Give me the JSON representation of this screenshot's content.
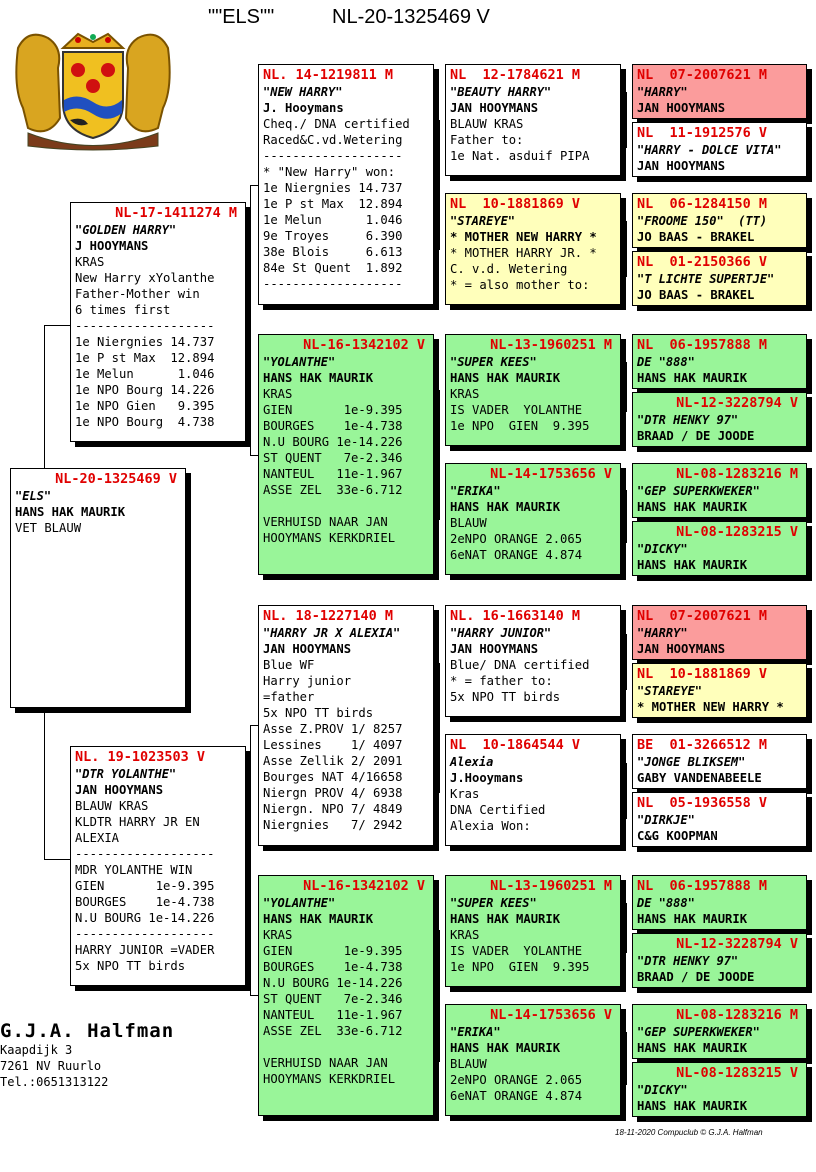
{
  "header": {
    "name": "\"\"ELS\"\"",
    "ring": "NL-20-1325469 V"
  },
  "breeder": {
    "name": "G.J.A. Halfman",
    "address1": "Kaapdijk 3",
    "address2": "7261 NV  Ruurlo",
    "phone": "Tel.:0651313122"
  },
  "footer": "18-11-2020   Compuclub © G.J.A. Halfman",
  "pigeons": {
    "p0": {
      "ring": "NL-20-1325469 V",
      "name": "\"ELS\"",
      "owner": "HANS HAK MAURIK",
      "lines": [
        "VET BLAUW"
      ]
    },
    "p1": {
      "ring": "NL-17-1411274 M",
      "name": "\"GOLDEN HARRY\"",
      "owner": "J HOOYMANS",
      "lines": [
        "KRAS",
        "New Harry xYolanthe",
        "Father-Mother win",
        "6 times first",
        "-------------------",
        "1e Niergnies 14.737",
        "1e P st Max  12.894",
        "1e Melun      1.046",
        "1e NPO Bourg 14.226",
        "1e NPO Gien   9.395",
        "1e NPO Bourg  4.738"
      ]
    },
    "p2": {
      "ring": "NL. 19-1023503 V",
      "name": "\"DTR YOLANTHE\"",
      "owner": "JAN HOOYMANS",
      "lines": [
        "BLAUW KRAS",
        "KLDTR HARRY JR EN",
        "ALEXIA",
        "-------------------",
        "MDR YOLANTHE WIN",
        "GIEN       1e-9.395",
        "BOURGES    1e-4.738",
        "N.U BOURG 1e-14.226",
        "-------------------",
        "HARRY JUNIOR =VADER",
        "5x NPO TT birds"
      ]
    },
    "p3": {
      "ring": "NL. 14-1219811 M",
      "name": "\"NEW HARRY\"",
      "owner": "J. Hooymans",
      "lines": [
        "Cheq./ DNA certified",
        "Raced&C.vd.Wetering",
        "-------------------",
        "* \"New Harry\" won:",
        "1e Niergnies 14.737",
        "1e P st Max  12.894",
        "1e Melun      1.046",
        "9e Troyes     6.390",
        "38e Blois     6.613",
        "84e St Quent  1.892",
        "-------------------"
      ]
    },
    "p4": {
      "ring": "NL-16-1342102 V",
      "name": "\"YOLANTHE\"",
      "owner": "HANS HAK MAURIK",
      "lines": [
        "KRAS",
        "GIEN       1e-9.395",
        "BOURGES    1e-4.738",
        "N.U BOURG 1e-14.226",
        "ST QUENT   7e-2.346",
        "NANTEUL   11e-1.967",
        "ASSE ZEL  33e-6.712",
        "",
        "VERHUISD NAAR JAN",
        "HOOYMANS KERKDRIEL"
      ]
    },
    "p5": {
      "ring": "NL. 18-1227140 M",
      "name": "\"HARRY JR X ALEXIA\"",
      "owner": "JAN HOOYMANS",
      "lines": [
        "Blue WF",
        "Harry junior",
        "=father",
        "5x NPO TT birds",
        "Asse Z.PROV 1/ 8257",
        "Lessines    1/ 4097",
        "Asse Zellik 2/ 2091",
        "Bourges NAT 4/16658",
        "Niergn PROV 4/ 6938",
        "Niergn. NPO 7/ 4849",
        "Niergnies   7/ 2942"
      ]
    },
    "p6": {
      "ring": "NL-16-1342102 V",
      "name": "\"YOLANTHE\"",
      "owner": "HANS HAK MAURIK",
      "lines": [
        "KRAS",
        "GIEN       1e-9.395",
        "BOURGES    1e-4.738",
        "N.U BOURG 1e-14.226",
        "ST QUENT   7e-2.346",
        "NANTEUL   11e-1.967",
        "ASSE ZEL  33e-6.712",
        "",
        "VERHUISD NAAR JAN",
        "HOOYMANS KERKDRIEL"
      ]
    },
    "p7": {
      "ring": "NL  12-1784621 M",
      "name": "\"BEAUTY HARRY\"",
      "owner": "JAN HOOYMANS",
      "lines": [
        "BLAUW KRAS",
        "Father to:",
        "1e Nat. asduif PIPA"
      ]
    },
    "p8": {
      "ring": "NL  10-1881869 V",
      "name": "\"STAREYE\"",
      "owner": "* MOTHER NEW HARRY *",
      "lines": [
        "* MOTHER HARRY JR. *",
        "C. v.d. Wetering",
        "* = also mother to:"
      ]
    },
    "p9": {
      "ring": "NL-13-1960251 M",
      "name": "\"SUPER KEES\"",
      "owner": "HANS HAK MAURIK",
      "lines": [
        "KRAS",
        "IS VADER  YOLANTHE",
        "1e NPO  GIEN  9.395"
      ]
    },
    "p10": {
      "ring": "NL-14-1753656 V",
      "name": "\"ERIKA\"",
      "owner": "HANS HAK MAURIK",
      "lines": [
        "BLAUW",
        "2eNPO ORANGE 2.065",
        "6eNAT ORANGE 4.874"
      ]
    },
    "p11": {
      "ring": "NL. 16-1663140 M",
      "name": "\"HARRY JUNIOR\"",
      "owner": "JAN HOOYMANS",
      "lines": [
        "Blue/ DNA certified",
        "* = father to:",
        "5x NPO TT birds"
      ]
    },
    "p12": {
      "ring": "NL  10-1864544 V",
      "name": "Alexia",
      "owner": "J.Hooymans",
      "lines": [
        "Kras",
        "DNA Certified",
        "Alexia Won:"
      ]
    },
    "p13": {
      "ring": "NL-13-1960251 M",
      "name": "\"SUPER KEES\"",
      "owner": "HANS HAK MAURIK",
      "lines": [
        "KRAS",
        "IS VADER  YOLANTHE",
        "1e NPO  GIEN  9.395"
      ]
    },
    "p14": {
      "ring": "NL-14-1753656 V",
      "name": "\"ERIKA\"",
      "owner": "HANS HAK MAURIK",
      "lines": [
        "BLAUW",
        "2eNPO ORANGE 2.065",
        "6eNAT ORANGE 4.874"
      ]
    },
    "p15": {
      "ring": "NL  07-2007621 M",
      "name": "\"HARRY\"",
      "owner": "JAN HOOYMANS",
      "lines": []
    },
    "p16": {
      "ring": "NL  11-1912576 V",
      "name": "\"HARRY - DOLCE VITA\"",
      "owner": "JAN HOOYMANS",
      "lines": []
    },
    "p17": {
      "ring": "NL  06-1284150 M",
      "name": "\"FROOME 150\"  (TT)",
      "owner": "JO BAAS - BRAKEL",
      "lines": []
    },
    "p18": {
      "ring": "NL  01-2150366 V",
      "name": "\"T LICHTE SUPERTJE\"",
      "owner": "JO BAAS - BRAKEL",
      "lines": []
    },
    "p19": {
      "ring": "NL  06-1957888 M",
      "name": "DE \"888\"",
      "owner": "HANS HAK MAURIK",
      "lines": []
    },
    "p20": {
      "ring": "NL-12-3228794 V",
      "name": "\"DTR HENKY 97\"",
      "owner": "BRAAD / DE JOODE",
      "lines": []
    },
    "p21": {
      "ring": "NL-08-1283216 M",
      "name": "\"GEP SUPERKWEKER\"",
      "owner": "HANS HAK MAURIK",
      "lines": []
    },
    "p22": {
      "ring": "NL-08-1283215 V",
      "name": "\"DICKY\"",
      "owner": "HANS HAK MAURIK",
      "lines": []
    },
    "p23": {
      "ring": "NL  07-2007621 M",
      "name": "\"HARRY\"",
      "owner": "JAN HOOYMANS",
      "lines": []
    },
    "p24": {
      "ring": "NL  10-1881869 V",
      "name": "\"STAREYE\"",
      "owner": "* MOTHER NEW HARRY *",
      "lines": []
    },
    "p25": {
      "ring": "BE  01-3266512 M",
      "name": "\"JONGE BLIKSEM\"",
      "owner": "GABY VANDENABEELE",
      "lines": []
    },
    "p26": {
      "ring": "NL  05-1936558 V",
      "name": "\"DIRKJE\"",
      "owner": "C&G KOOPMAN",
      "lines": []
    },
    "p27": {
      "ring": "NL  06-1957888 M",
      "name": "DE \"888\"",
      "owner": "HANS HAK MAURIK",
      "lines": []
    },
    "p28": {
      "ring": "NL-12-3228794 V",
      "name": "\"DTR HENKY 97\"",
      "owner": "BRAAD / DE JOODE",
      "lines": []
    },
    "p29": {
      "ring": "NL-08-1283216 M",
      "name": "\"GEP SUPERKWEKER\"",
      "owner": "HANS HAK MAURIK",
      "lines": []
    },
    "p30": {
      "ring": "NL-08-1283215 V",
      "name": "\"DICKY\"",
      "owner": "HANS HAK MAURIK",
      "lines": []
    }
  },
  "colors": {
    "green": "#99f599",
    "yellow": "#ffffbb",
    "pink": "#fb9c9c",
    "ring_red": "#e00000"
  }
}
